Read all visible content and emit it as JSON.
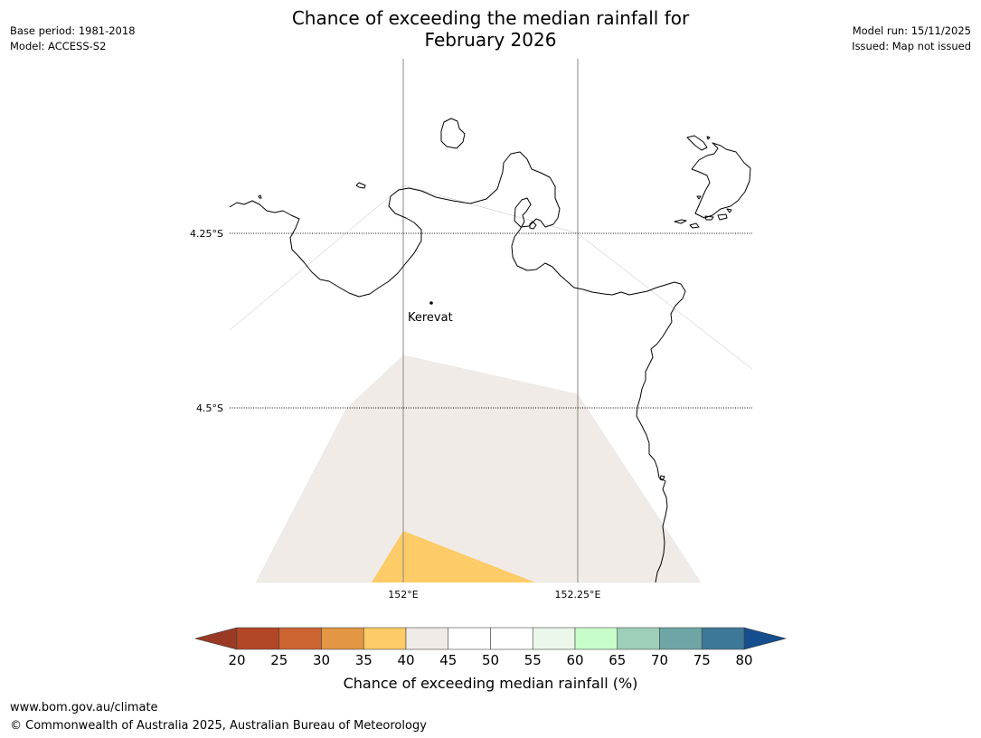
{
  "title": {
    "line1": "Chance of exceeding the median rainfall for",
    "line2": "February 2026"
  },
  "meta": {
    "base_period": "Base period: 1981-2018",
    "model": "Model: ACCESS-S2",
    "model_run": "Model run: 15/11/2025",
    "issued": "Issued: Map not issued"
  },
  "map": {
    "graticule": {
      "lon_labels": [
        "152°E",
        "152.25°E"
      ],
      "lat_labels": [
        "4.25°S",
        "4.5°S"
      ]
    },
    "place_label": "Kerevat",
    "colors": {
      "coast": "#000000",
      "band_40_45": "#f0ebe6",
      "band_35_40": "#fdcb67"
    }
  },
  "colorbar": {
    "ticks": [
      "20",
      "25",
      "30",
      "35",
      "40",
      "45",
      "50",
      "55",
      "60",
      "65",
      "70",
      "75",
      "80"
    ],
    "colors": [
      "#9a3a24",
      "#b24626",
      "#cc6431",
      "#e39644",
      "#fdcb67",
      "#f0ebe6",
      "#ffffff",
      "#ffffff",
      "#eaf7ea",
      "#c7fdca",
      "#9dcfb9",
      "#6ea6a6",
      "#3e7899",
      "#144e8c"
    ],
    "label": "Chance of exceeding median rainfall (%)"
  },
  "footer": {
    "url": "www.bom.gov.au/climate",
    "copyright": "© Commonwealth of Australia 2025, Australian Bureau of Meteorology"
  }
}
